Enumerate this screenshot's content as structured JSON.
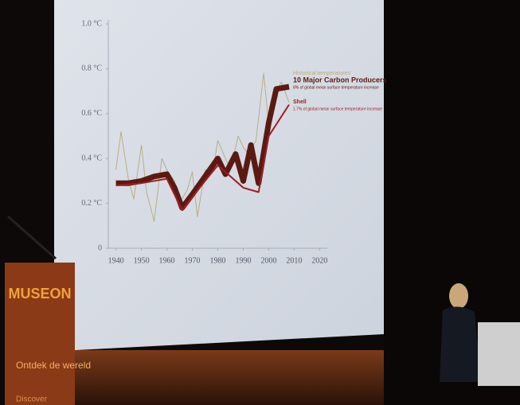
{
  "chart_data": {
    "type": "line",
    "xlim": [
      1937,
      2023
    ],
    "xticks": [
      1940,
      1950,
      1960,
      1970,
      1980,
      1990,
      2000,
      2010,
      2020
    ],
    "ylim": [
      0,
      1.0
    ],
    "yticks": [
      0,
      {
        "value": 0.2,
        "label": "0.2 °C"
      },
      {
        "value": 0.4,
        "label": "0.4 °C"
      },
      {
        "value": 0.6,
        "label": "0.6 °C"
      },
      {
        "value": 0.8,
        "label": "0.8 °C"
      },
      {
        "value": 1.0,
        "label": "1.0 °C"
      }
    ],
    "series": [
      {
        "name": "Historical temperatures",
        "color": "#b9ad88",
        "x": [
          1940,
          1942,
          1945,
          1947,
          1950,
          1952,
          1955,
          1958,
          1960,
          1963,
          1965,
          1968,
          1970,
          1972,
          1975,
          1978,
          1980,
          1983,
          1985,
          1988,
          1990,
          1992,
          1995,
          1998,
          2000,
          2002,
          2005,
          2008
        ],
        "values": [
          0.35,
          0.52,
          0.3,
          0.22,
          0.46,
          0.25,
          0.12,
          0.4,
          0.35,
          0.3,
          0.2,
          0.26,
          0.34,
          0.14,
          0.35,
          0.34,
          0.48,
          0.4,
          0.35,
          0.5,
          0.45,
          0.42,
          0.48,
          0.78,
          0.55,
          0.68,
          0.74,
          0.65
        ]
      },
      {
        "name": "10 Major Carbon Producers",
        "description": "8% of global mean surface temperature increase",
        "color": "#5a1a12",
        "x": [
          1940,
          1945,
          1950,
          1955,
          1960,
          1963,
          1966,
          1970,
          1975,
          1980,
          1983,
          1987,
          1990,
          1993,
          1996,
          2000,
          2003,
          2008
        ],
        "values": [
          0.29,
          0.29,
          0.3,
          0.32,
          0.33,
          0.27,
          0.18,
          0.24,
          0.32,
          0.4,
          0.33,
          0.42,
          0.3,
          0.46,
          0.29,
          0.56,
          0.71,
          0.72
        ]
      },
      {
        "name": "Shell",
        "description": "1.7% of global mean surface temperature increase",
        "color": "#a01c24",
        "x": [
          1940,
          1950,
          1960,
          1966,
          1975,
          1980,
          1990,
          1996,
          2000,
          2008
        ],
        "values": [
          0.28,
          0.29,
          0.31,
          0.17,
          0.3,
          0.37,
          0.27,
          0.25,
          0.5,
          0.64
        ]
      }
    ]
  },
  "podium": {
    "brand": "MUSEON",
    "tagline": "Ontdek de wereld",
    "sub": "Discover"
  }
}
